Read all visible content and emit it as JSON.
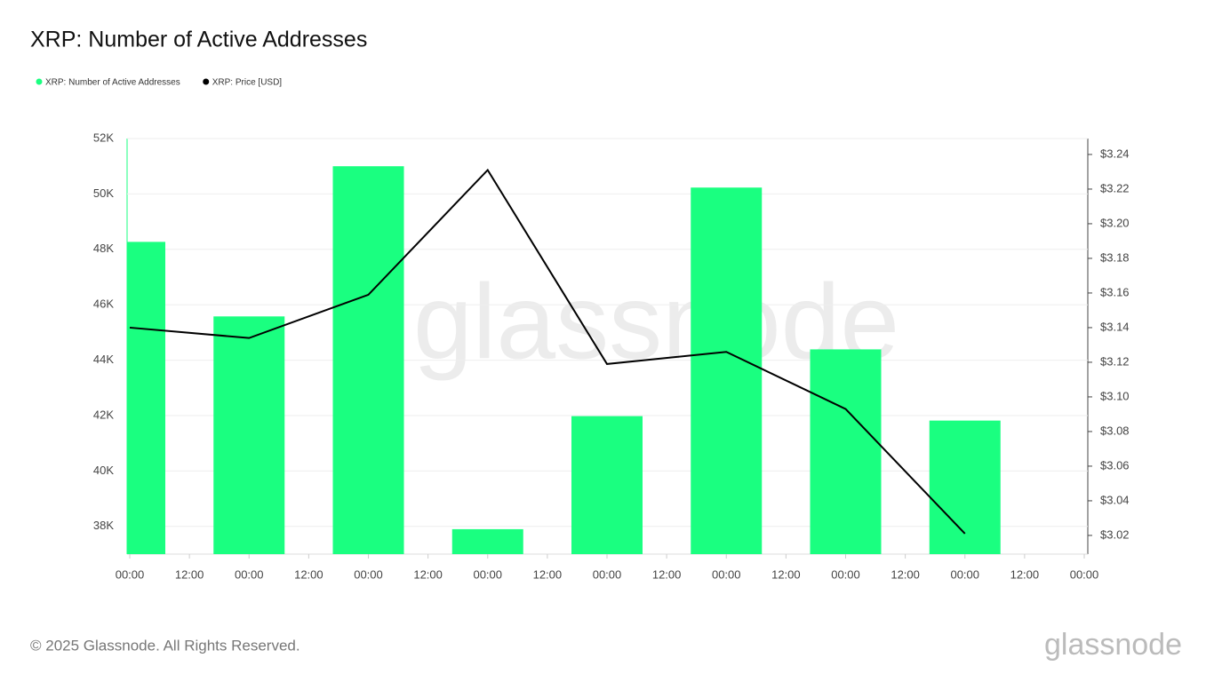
{
  "chart_data": {
    "type": "bar",
    "title": "XRP: Number of Active Addresses",
    "x": [
      0,
      24,
      48,
      72,
      96,
      120,
      144,
      168
    ],
    "xlim": [
      0,
      192
    ],
    "xticks": [
      {
        "value": 0,
        "label": "00:00"
      },
      {
        "value": 12,
        "label": "12:00"
      },
      {
        "value": 24,
        "label": "00:00"
      },
      {
        "value": 36,
        "label": "12:00"
      },
      {
        "value": 48,
        "label": "00:00"
      },
      {
        "value": 60,
        "label": "12:00"
      },
      {
        "value": 72,
        "label": "00:00"
      },
      {
        "value": 84,
        "label": "12:00"
      },
      {
        "value": 96,
        "label": "00:00"
      },
      {
        "value": 108,
        "label": "12:00"
      },
      {
        "value": 120,
        "label": "00:00"
      },
      {
        "value": 132,
        "label": "12:00"
      },
      {
        "value": 144,
        "label": "00:00"
      },
      {
        "value": 156,
        "label": "12:00"
      },
      {
        "value": 168,
        "label": "00:00"
      },
      {
        "value": 180,
        "label": "12:00"
      },
      {
        "value": 192,
        "label": "00:00"
      }
    ],
    "ylim": [
      37000,
      52000
    ],
    "yticks": [
      {
        "value": 38000,
        "label": "38K"
      },
      {
        "value": 40000,
        "label": "40K"
      },
      {
        "value": 42000,
        "label": "42K"
      },
      {
        "value": 44000,
        "label": "44K"
      },
      {
        "value": 46000,
        "label": "46K"
      },
      {
        "value": 48000,
        "label": "48K"
      },
      {
        "value": 50000,
        "label": "50K"
      },
      {
        "value": 52000,
        "label": "52K"
      }
    ],
    "y2lim": [
      3.0092,
      3.2492
    ],
    "y2ticks": [
      {
        "value": 3.02,
        "label": "$3.02"
      },
      {
        "value": 3.04,
        "label": "$3.04"
      },
      {
        "value": 3.06,
        "label": "$3.06"
      },
      {
        "value": 3.08,
        "label": "$3.08"
      },
      {
        "value": 3.1,
        "label": "$3.10"
      },
      {
        "value": 3.12,
        "label": "$3.12"
      },
      {
        "value": 3.14,
        "label": "$3.14"
      },
      {
        "value": 3.16,
        "label": "$3.16"
      },
      {
        "value": 3.18,
        "label": "$3.18"
      },
      {
        "value": 3.2,
        "label": "$3.20"
      },
      {
        "value": 3.22,
        "label": "$3.22"
      },
      {
        "value": 3.24,
        "label": "$3.24"
      }
    ],
    "grid": true,
    "series": [
      {
        "name": "XRP: Number of Active Addresses",
        "type": "bar",
        "color": "#1aff80",
        "values": [
          48270,
          45580,
          51000,
          37900,
          41980,
          50230,
          44390,
          41820
        ]
      },
      {
        "name": "XRP: Price [USD]",
        "type": "line",
        "axis": "y2",
        "color": "#000000",
        "values": [
          3.14,
          3.134,
          3.159,
          3.231,
          3.119,
          3.126,
          3.093,
          3.021
        ]
      }
    ]
  },
  "watermark": "glassnode",
  "footer": {
    "copyright": "© 2025 Glassnode. All Rights Reserved.",
    "logo": "glassnode"
  }
}
